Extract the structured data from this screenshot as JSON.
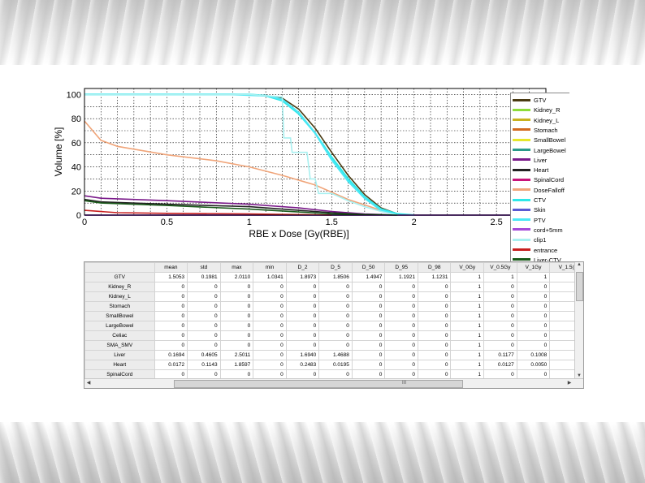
{
  "chart_data": {
    "type": "line",
    "xlabel": "RBE x Dose [Gy(RBE)]",
    "ylabel": "Volume [%]",
    "xlim": [
      0,
      2.8
    ],
    "ylim": [
      0,
      105
    ],
    "xticks": [
      "0",
      "0.5",
      "1",
      "1.5",
      "2",
      "2.5"
    ],
    "yticks": [
      "0",
      "20",
      "40",
      "60",
      "80",
      "100"
    ],
    "grid": true,
    "legend_position": "right",
    "series": [
      {
        "name": "GTV",
        "color": "#4a3b12",
        "x": [
          0,
          1.0,
          1.1,
          1.2,
          1.3,
          1.4,
          1.5,
          1.6,
          1.7,
          1.8,
          1.9,
          2.0
        ],
        "y": [
          100,
          100,
          99,
          97,
          88,
          72,
          52,
          33,
          17,
          6,
          1,
          0
        ]
      },
      {
        "name": "Kidney_R",
        "color": "#8ddc3a",
        "x": [
          0,
          2.8
        ],
        "y": [
          0,
          0
        ]
      },
      {
        "name": "Kidney_L",
        "color": "#c8b21e",
        "x": [
          0,
          2.8
        ],
        "y": [
          0,
          0
        ]
      },
      {
        "name": "Stomach",
        "color": "#d2691e",
        "x": [
          0,
          2.8
        ],
        "y": [
          0,
          0
        ]
      },
      {
        "name": "SmallBowel",
        "color": "#e7e72a",
        "x": [
          0,
          2.8
        ],
        "y": [
          0,
          0
        ]
      },
      {
        "name": "LargeBowel",
        "color": "#2a9a8a",
        "x": [
          0,
          2.8
        ],
        "y": [
          0,
          0
        ]
      },
      {
        "name": "Liver",
        "color": "#7a1a8a",
        "x": [
          0,
          0.1,
          0.5,
          1.0,
          1.3,
          1.5,
          1.7,
          1.9
        ],
        "y": [
          16,
          14,
          12,
          9,
          6,
          3,
          1,
          0
        ]
      },
      {
        "name": "Heart",
        "color": "#222222",
        "x": [
          0,
          0.1,
          0.5,
          1.0,
          1.3,
          1.5,
          1.7,
          1.9
        ],
        "y": [
          13,
          11,
          9,
          7,
          4,
          2,
          0.5,
          0
        ]
      },
      {
        "name": "SpinalCord",
        "color": "#c8147a",
        "x": [
          0,
          2.8
        ],
        "y": [
          0,
          0
        ]
      },
      {
        "name": "DoseFalloff",
        "color": "#f0a57a",
        "x": [
          0,
          0.1,
          0.2,
          0.5,
          0.8,
          1.0,
          1.2,
          1.4,
          1.6,
          1.8,
          1.9
        ],
        "y": [
          78,
          62,
          57,
          50,
          45,
          40,
          33,
          25,
          13,
          4,
          0
        ]
      },
      {
        "name": "CTV",
        "color": "#2ee8e8",
        "x": [
          0,
          1.0,
          1.1,
          1.2,
          1.3,
          1.4,
          1.5,
          1.6,
          1.7,
          1.8,
          1.9,
          2.0
        ],
        "y": [
          100,
          100,
          99,
          95,
          84,
          68,
          48,
          30,
          15,
          5,
          1,
          0
        ]
      },
      {
        "name": "Skin",
        "color": "#5a5ad2",
        "x": [
          0,
          2.8
        ],
        "y": [
          0,
          0
        ]
      },
      {
        "name": "PTV",
        "color": "#4be8f5",
        "x": [
          0,
          0.9,
          1.1,
          1.2,
          1.3,
          1.4,
          1.5,
          1.6,
          1.7,
          1.8,
          1.9
        ],
        "y": [
          100,
          100,
          99,
          96,
          85,
          68,
          46,
          28,
          14,
          4,
          0
        ]
      },
      {
        "name": "cord+5mm",
        "color": "#a44ad8",
        "x": [
          0,
          2.8
        ],
        "y": [
          0,
          0
        ]
      },
      {
        "name": "clip1",
        "color": "#a8f0f0",
        "x": [
          0,
          1.0,
          1.2,
          1.21,
          1.25,
          1.26,
          1.35,
          1.37,
          1.4,
          1.42,
          1.5,
          1.6,
          1.7,
          1.8,
          1.9
        ],
        "y": [
          100,
          100,
          98,
          64,
          64,
          52,
          52,
          30,
          30,
          18,
          18,
          12,
          7,
          3,
          0
        ]
      },
      {
        "name": "entrance",
        "color": "#c81e1e",
        "x": [
          0,
          0.2,
          0.5,
          1.0,
          1.5
        ],
        "y": [
          4,
          2,
          1.5,
          1,
          0
        ]
      },
      {
        "name": "Liver-CTV",
        "color": "#1a5a1a",
        "x": [
          0,
          0.1,
          0.5,
          1.0,
          1.5,
          1.9
        ],
        "y": [
          12,
          10,
          8,
          5,
          1,
          0
        ]
      }
    ]
  },
  "table": {
    "columns": [
      "mean",
      "std",
      "max",
      "min",
      "D_2",
      "D_5",
      "D_50",
      "D_95",
      "D_98",
      "V_0Gy",
      "V_0.5Gy",
      "V_1Gy",
      "V_1.5("
    ],
    "rows": [
      {
        "label": "GTV",
        "values": [
          "1.5053",
          "0.1981",
          "2.0110",
          "1.0341",
          "1.8973",
          "1.8506",
          "1.4947",
          "1.1921",
          "1.1231",
          "1",
          "1",
          "1",
          "0."
        ]
      },
      {
        "label": "Kidney_R",
        "values": [
          "0",
          "0",
          "0",
          "0",
          "0",
          "0",
          "0",
          "0",
          "0",
          "1",
          "0",
          "0",
          ""
        ]
      },
      {
        "label": "Kidney_L",
        "values": [
          "0",
          "0",
          "0",
          "0",
          "0",
          "0",
          "0",
          "0",
          "0",
          "1",
          "0",
          "0",
          ""
        ]
      },
      {
        "label": "Stomach",
        "values": [
          "0",
          "0",
          "0",
          "0",
          "0",
          "0",
          "0",
          "0",
          "0",
          "1",
          "0",
          "0",
          ""
        ]
      },
      {
        "label": "SmallBowel",
        "values": [
          "0",
          "0",
          "0",
          "0",
          "0",
          "0",
          "0",
          "0",
          "0",
          "1",
          "0",
          "0",
          ""
        ]
      },
      {
        "label": "LargeBowel",
        "values": [
          "0",
          "0",
          "0",
          "0",
          "0",
          "0",
          "0",
          "0",
          "0",
          "1",
          "0",
          "0",
          ""
        ]
      },
      {
        "label": "Celiac",
        "values": [
          "0",
          "0",
          "0",
          "0",
          "0",
          "0",
          "0",
          "0",
          "0",
          "1",
          "0",
          "0",
          ""
        ]
      },
      {
        "label": "SMA_SMV",
        "values": [
          "0",
          "0",
          "0",
          "0",
          "0",
          "0",
          "0",
          "0",
          "0",
          "1",
          "0",
          "0",
          ""
        ]
      },
      {
        "label": "Liver",
        "values": [
          "0.1694",
          "0.4605",
          "2.5011",
          "0",
          "1.6940",
          "1.4688",
          "0",
          "0",
          "0",
          "1",
          "0.1177",
          "0.1008",
          "0."
        ]
      },
      {
        "label": "Heart",
        "values": [
          "0.0172",
          "0.1143",
          "1.8597",
          "0",
          "0.2483",
          "0.0195",
          "0",
          "0",
          "0",
          "1",
          "0.0127",
          "0.0050",
          "0."
        ]
      },
      {
        "label": "SpinalCord",
        "values": [
          "0",
          "0",
          "0",
          "0",
          "0",
          "0",
          "0",
          "0",
          "0",
          "1",
          "0",
          "0",
          ""
        ]
      }
    ],
    "scroll_grip": "III"
  }
}
